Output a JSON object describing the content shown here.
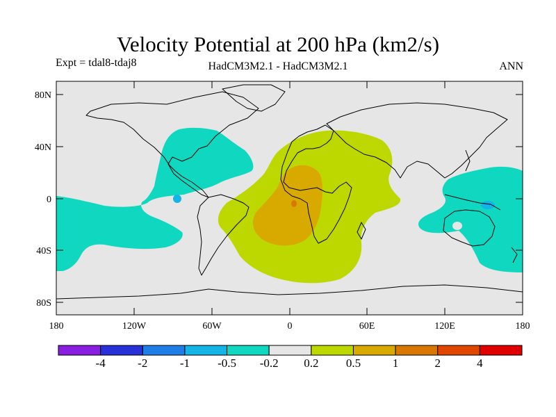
{
  "header": {
    "title": "Velocity Potential at 200 hPa (km2/s)",
    "experiment": "Expt = tdal8-tdaj8",
    "models": "HadCM3M2.1 - HadCM3M2.1",
    "season": "ANN"
  },
  "axes": {
    "lat_labels": [
      "80N",
      "40N",
      "0",
      "40S",
      "80S"
    ],
    "lon_labels": [
      "180",
      "120W",
      "60W",
      "0",
      "60E",
      "120E",
      "180"
    ]
  },
  "colorbar": {
    "colors": [
      "#8a1ee0",
      "#2830d8",
      "#1e7ee6",
      "#14b4e6",
      "#10d8c0",
      "#e6e6e6",
      "#bcd800",
      "#d8aa00",
      "#d87800",
      "#e04600",
      "#e00000"
    ],
    "labels": [
      "-4",
      "-2",
      "-1",
      "-0.5",
      "-0.2",
      "0.2",
      "0.5",
      "1",
      "2",
      "4"
    ]
  },
  "map": {
    "background_color": "#e6e6e6",
    "features": [
      "negative-anomaly-eastern-pacific-americas",
      "positive-anomaly-atlantic-africa",
      "negative-anomaly-western-pacific-australia"
    ]
  }
}
